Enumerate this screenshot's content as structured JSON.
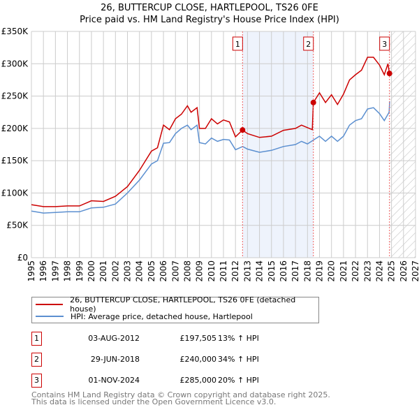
{
  "chart_data": {
    "type": "line",
    "title": "26, BUTTERCUP CLOSE, HARTLEPOOL, TS26 0FE",
    "subtitle": "Price paid vs. HM Land Registry's House Price Index (HPI)",
    "xlim": [
      1995,
      2027
    ],
    "ylim": [
      0,
      350000
    ],
    "y_ticks": [
      {
        "v": 0,
        "label": "£0"
      },
      {
        "v": 50000,
        "label": "£50K"
      },
      {
        "v": 100000,
        "label": "£100K"
      },
      {
        "v": 150000,
        "label": "£150K"
      },
      {
        "v": 200000,
        "label": "£200K"
      },
      {
        "v": 250000,
        "label": "£250K"
      },
      {
        "v": 300000,
        "label": "£300K"
      },
      {
        "v": 350000,
        "label": "£350K"
      }
    ],
    "x_ticks": [
      "1995",
      "1996",
      "1997",
      "1998",
      "1999",
      "2000",
      "2001",
      "2002",
      "2003",
      "2004",
      "2005",
      "2006",
      "2007",
      "2008",
      "2009",
      "2010",
      "2011",
      "2012",
      "2013",
      "2014",
      "2015",
      "2016",
      "2017",
      "2018",
      "2019",
      "2020",
      "2021",
      "2022",
      "2023",
      "2024",
      "2025",
      "2026",
      "2027"
    ],
    "grid": true,
    "series": [
      {
        "name": "26, BUTTERCUP CLOSE, HARTLEPOOL, TS26 0FE (detached house)",
        "color": "#cc0000",
        "x": [
          1995,
          1996,
          1997,
          1998,
          1999,
          2000,
          2001,
          2002,
          2003,
          2004,
          2005,
          2005.5,
          2006,
          2006.5,
          2007,
          2007.5,
          2008,
          2008.3,
          2008.8,
          2009,
          2009.5,
          2010,
          2010.5,
          2011,
          2011.5,
          2012,
          2012.59,
          2013,
          2014,
          2015,
          2016,
          2017,
          2017.5,
          2018.4,
          2018.49,
          2019,
          2019.5,
          2020,
          2020.5,
          2021,
          2021.5,
          2022,
          2022.5,
          2023,
          2023.5,
          2024,
          2024.4,
          2024.7,
          2024.83
        ],
        "y": [
          82000,
          79000,
          79000,
          80000,
          80000,
          88000,
          87000,
          95000,
          110000,
          135000,
          165000,
          170000,
          205000,
          198000,
          215000,
          222000,
          235000,
          225000,
          232000,
          200000,
          200000,
          215000,
          207000,
          213000,
          210000,
          187000,
          197505,
          192000,
          186000,
          188000,
          197000,
          200000,
          205000,
          198000,
          240000,
          255000,
          240000,
          252000,
          237000,
          253000,
          275000,
          283000,
          290000,
          310000,
          310000,
          298000,
          283000,
          300000,
          285000
        ]
      },
      {
        "name": "HPI: Average price, detached house, Hartlepool",
        "color": "#5b8fd0",
        "x": [
          1995,
          1996,
          1997,
          1998,
          1999,
          2000,
          2001,
          2002,
          2003,
          2004,
          2005,
          2005.5,
          2006,
          2006.5,
          2007,
          2007.5,
          2008,
          2008.3,
          2008.8,
          2009,
          2009.5,
          2010,
          2010.5,
          2011,
          2011.5,
          2012,
          2012.6,
          2013,
          2014,
          2015,
          2016,
          2017,
          2017.5,
          2018,
          2018.5,
          2019,
          2019.5,
          2020,
          2020.5,
          2021,
          2021.5,
          2022,
          2022.5,
          2023,
          2023.5,
          2024,
          2024.4,
          2024.8,
          2024.85
        ],
        "y": [
          72000,
          69000,
          70000,
          71000,
          71000,
          77000,
          78000,
          83000,
          100000,
          120000,
          145000,
          150000,
          177000,
          178000,
          192000,
          200000,
          205000,
          198000,
          205000,
          178000,
          176000,
          185000,
          180000,
          183000,
          182000,
          167000,
          172000,
          168000,
          163000,
          166000,
          172000,
          175000,
          180000,
          176000,
          182000,
          188000,
          180000,
          188000,
          180000,
          188000,
          205000,
          212000,
          215000,
          230000,
          232000,
          223000,
          212000,
          225000,
          242000
        ]
      }
    ],
    "sales": [
      {
        "id": "1",
        "x": 2012.59,
        "date": "03-AUG-2012",
        "price": "£197,505",
        "price_value": 197505,
        "hpi": "13% ↑ HPI"
      },
      {
        "id": "2",
        "x": 2018.49,
        "date": "29-JUN-2018",
        "price": "£240,000",
        "price_value": 240000,
        "hpi": "34% ↑ HPI"
      },
      {
        "id": "3",
        "x": 2024.83,
        "date": "01-NOV-2024",
        "price": "£285,000",
        "price_value": 285000,
        "hpi": "20% ↑ HPI"
      }
    ],
    "legend_placement": "bottom"
  },
  "footer": {
    "line1": "Contains HM Land Registry data © Crown copyright and database right 2025.",
    "line2": "This data is licensed under the Open Government Licence v3.0."
  }
}
